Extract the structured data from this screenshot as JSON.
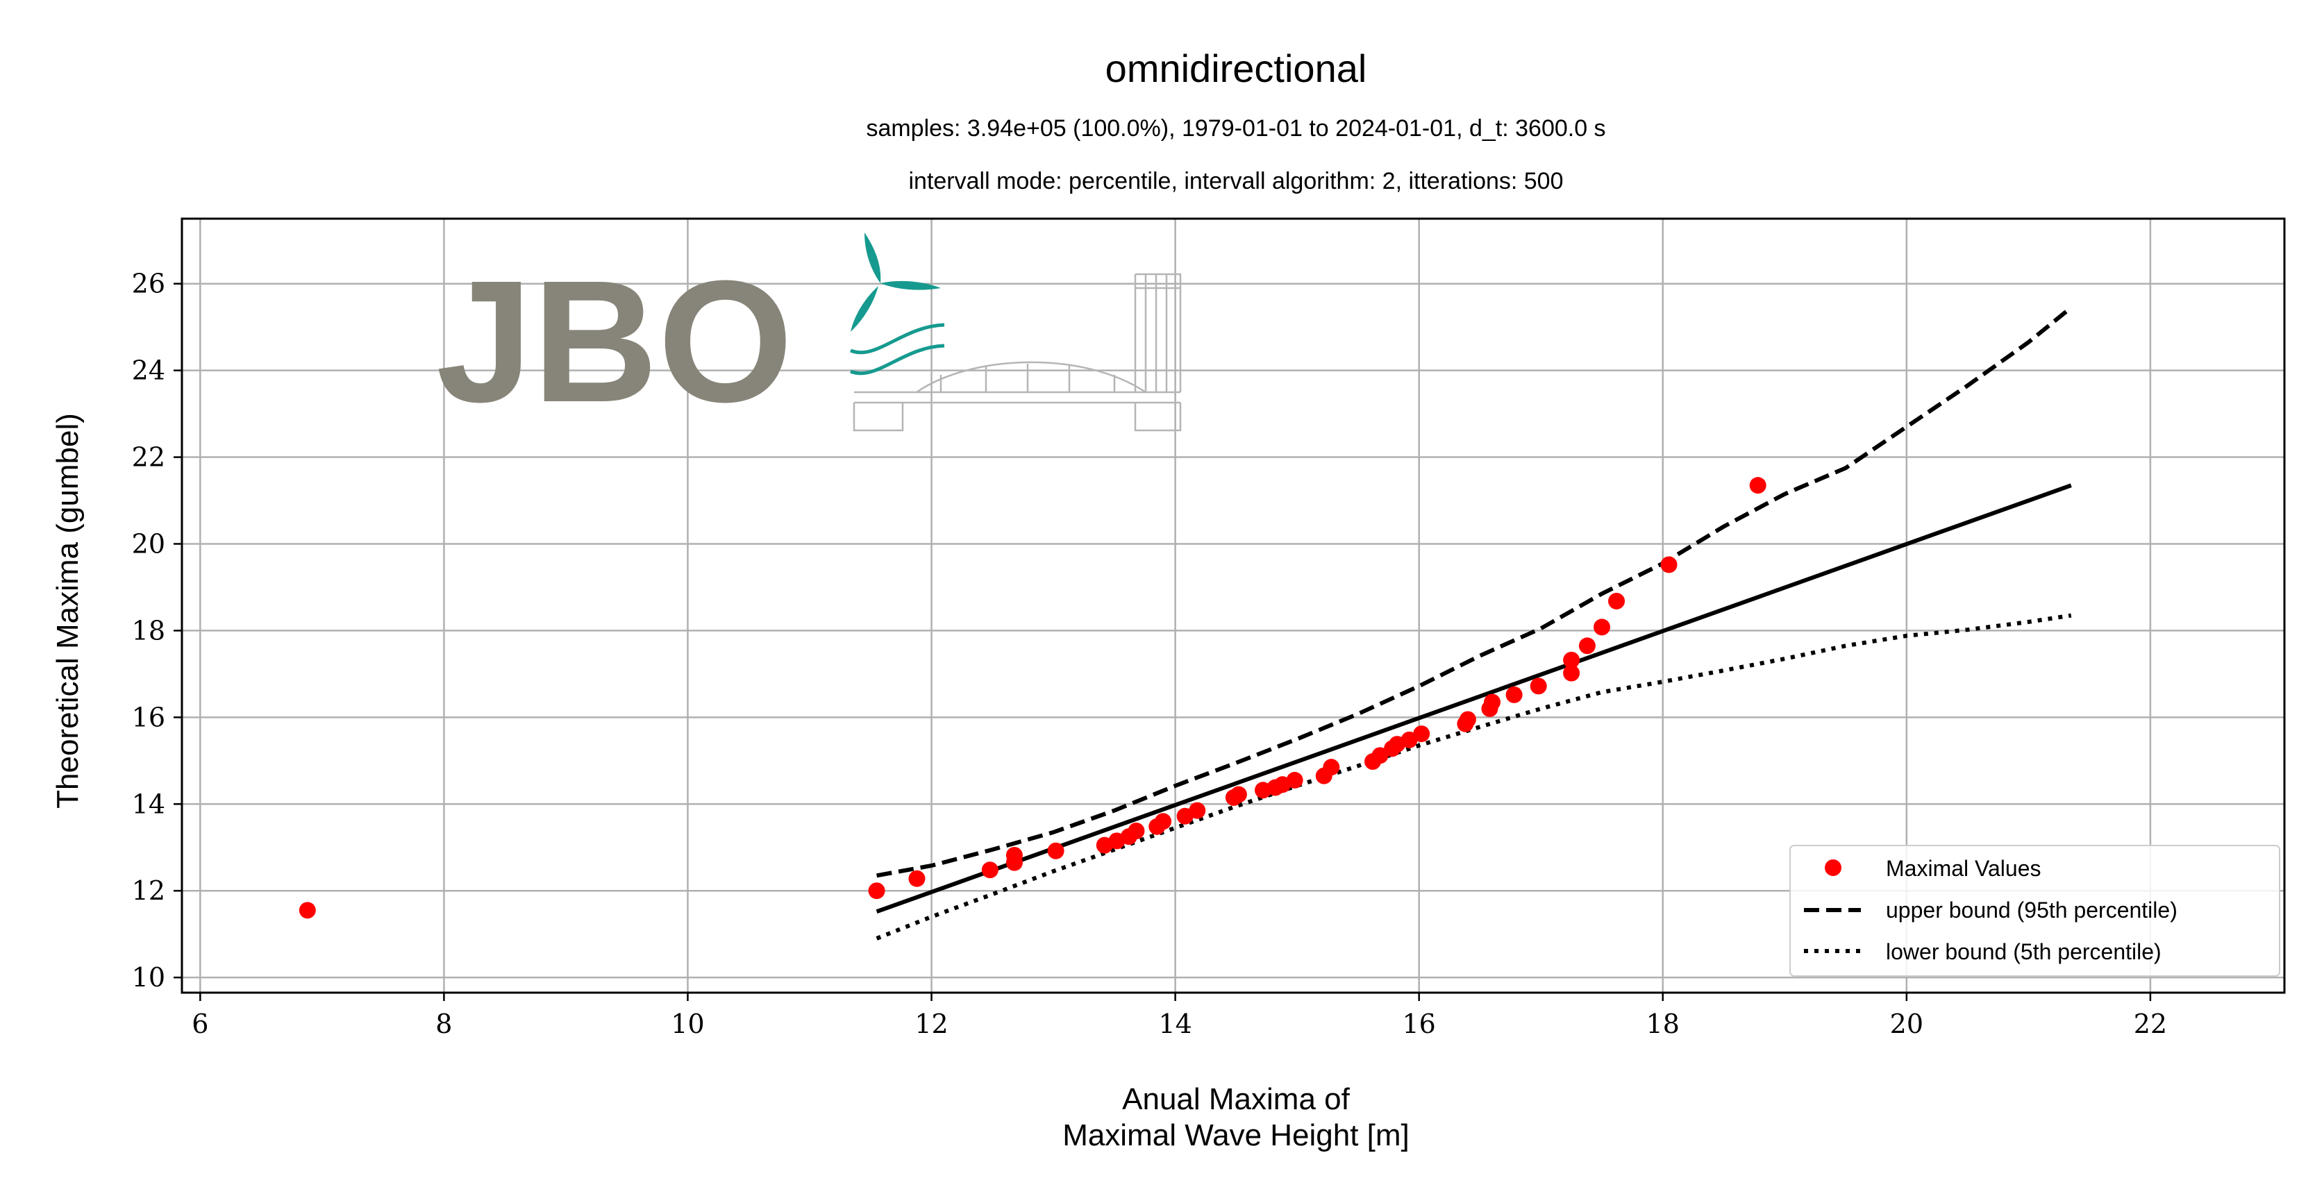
{
  "chart_data": {
    "type": "scatter",
    "title": "omnidirectional",
    "subtitle_lines": [
      "samples: 3.94e+05 (100.0%), 1979-01-01 to 2024-01-01, d_t: 3600.0 s",
      "intervall mode: percentile, intervall algorithm: 2, itterations: 500"
    ],
    "xlabel_lines": [
      "Anual Maxima of",
      "Maximal Wave Height [m]"
    ],
    "ylabel": "Theoretical Maxima (gumbel)",
    "xlim": [
      5.85,
      23.1
    ],
    "ylim": [
      9.65,
      27.5
    ],
    "xticks": [
      6,
      8,
      10,
      12,
      14,
      16,
      18,
      20,
      22
    ],
    "yticks": [
      10,
      12,
      14,
      16,
      18,
      20,
      22,
      24,
      26
    ],
    "grid": true,
    "legend_position": "lower-right",
    "logo_text": "JBO",
    "series": [
      {
        "name": "Maximal Values",
        "kind": "scatter",
        "color": "#ff0000",
        "points": [
          [
            6.88,
            11.55
          ],
          [
            11.55,
            12.0
          ],
          [
            11.88,
            12.28
          ],
          [
            12.48,
            12.48
          ],
          [
            12.68,
            12.65
          ],
          [
            12.68,
            12.82
          ],
          [
            13.02,
            12.92
          ],
          [
            13.42,
            13.05
          ],
          [
            13.52,
            13.15
          ],
          [
            13.62,
            13.25
          ],
          [
            13.68,
            13.38
          ],
          [
            13.85,
            13.48
          ],
          [
            13.9,
            13.6
          ],
          [
            14.08,
            13.72
          ],
          [
            14.18,
            13.85
          ],
          [
            14.48,
            14.15
          ],
          [
            14.52,
            14.22
          ],
          [
            14.72,
            14.32
          ],
          [
            14.82,
            14.38
          ],
          [
            14.88,
            14.45
          ],
          [
            14.98,
            14.55
          ],
          [
            15.22,
            14.65
          ],
          [
            15.28,
            14.85
          ],
          [
            15.62,
            14.98
          ],
          [
            15.68,
            15.12
          ],
          [
            15.78,
            15.28
          ],
          [
            15.82,
            15.38
          ],
          [
            15.92,
            15.48
          ],
          [
            16.02,
            15.62
          ],
          [
            16.38,
            15.85
          ],
          [
            16.4,
            15.95
          ],
          [
            16.58,
            16.2
          ],
          [
            16.6,
            16.35
          ],
          [
            16.78,
            16.52
          ],
          [
            16.98,
            16.72
          ],
          [
            17.25,
            17.02
          ],
          [
            17.25,
            17.32
          ],
          [
            17.38,
            17.65
          ],
          [
            17.5,
            18.08
          ],
          [
            17.62,
            18.68
          ],
          [
            18.05,
            19.52
          ],
          [
            18.78,
            21.35
          ]
        ]
      },
      {
        "name": "",
        "kind": "line",
        "style": "solid",
        "color": "#000000",
        "points": [
          [
            11.55,
            11.52
          ],
          [
            21.35,
            21.35
          ]
        ]
      },
      {
        "name": "upper bound (95th percentile)",
        "kind": "line",
        "style": "dashed",
        "color": "#000000",
        "points": [
          [
            11.55,
            12.35
          ],
          [
            12.0,
            12.58
          ],
          [
            12.5,
            12.95
          ],
          [
            13.0,
            13.35
          ],
          [
            13.5,
            13.85
          ],
          [
            14.0,
            14.42
          ],
          [
            14.5,
            14.95
          ],
          [
            15.0,
            15.5
          ],
          [
            15.5,
            16.08
          ],
          [
            16.0,
            16.72
          ],
          [
            16.5,
            17.42
          ],
          [
            17.0,
            18.05
          ],
          [
            17.5,
            18.85
          ],
          [
            18.0,
            19.55
          ],
          [
            18.5,
            20.4
          ],
          [
            19.0,
            21.15
          ],
          [
            19.5,
            21.75
          ],
          [
            20.0,
            22.7
          ],
          [
            20.5,
            23.65
          ],
          [
            21.0,
            24.65
          ],
          [
            21.35,
            25.45
          ]
        ]
      },
      {
        "name": "lower bound (5th percentile)",
        "kind": "line",
        "style": "dotted",
        "color": "#000000",
        "points": [
          [
            11.55,
            10.9
          ],
          [
            12.0,
            11.4
          ],
          [
            12.5,
            11.92
          ],
          [
            13.0,
            12.45
          ],
          [
            13.5,
            12.95
          ],
          [
            14.0,
            13.45
          ],
          [
            14.5,
            13.95
          ],
          [
            15.0,
            14.42
          ],
          [
            15.5,
            14.88
          ],
          [
            16.0,
            15.35
          ],
          [
            16.5,
            15.78
          ],
          [
            17.0,
            16.2
          ],
          [
            17.5,
            16.58
          ],
          [
            18.0,
            16.82
          ],
          [
            18.5,
            17.08
          ],
          [
            19.0,
            17.35
          ],
          [
            19.5,
            17.65
          ],
          [
            20.0,
            17.88
          ],
          [
            20.5,
            18.02
          ],
          [
            21.0,
            18.2
          ],
          [
            21.35,
            18.35
          ]
        ]
      }
    ]
  }
}
